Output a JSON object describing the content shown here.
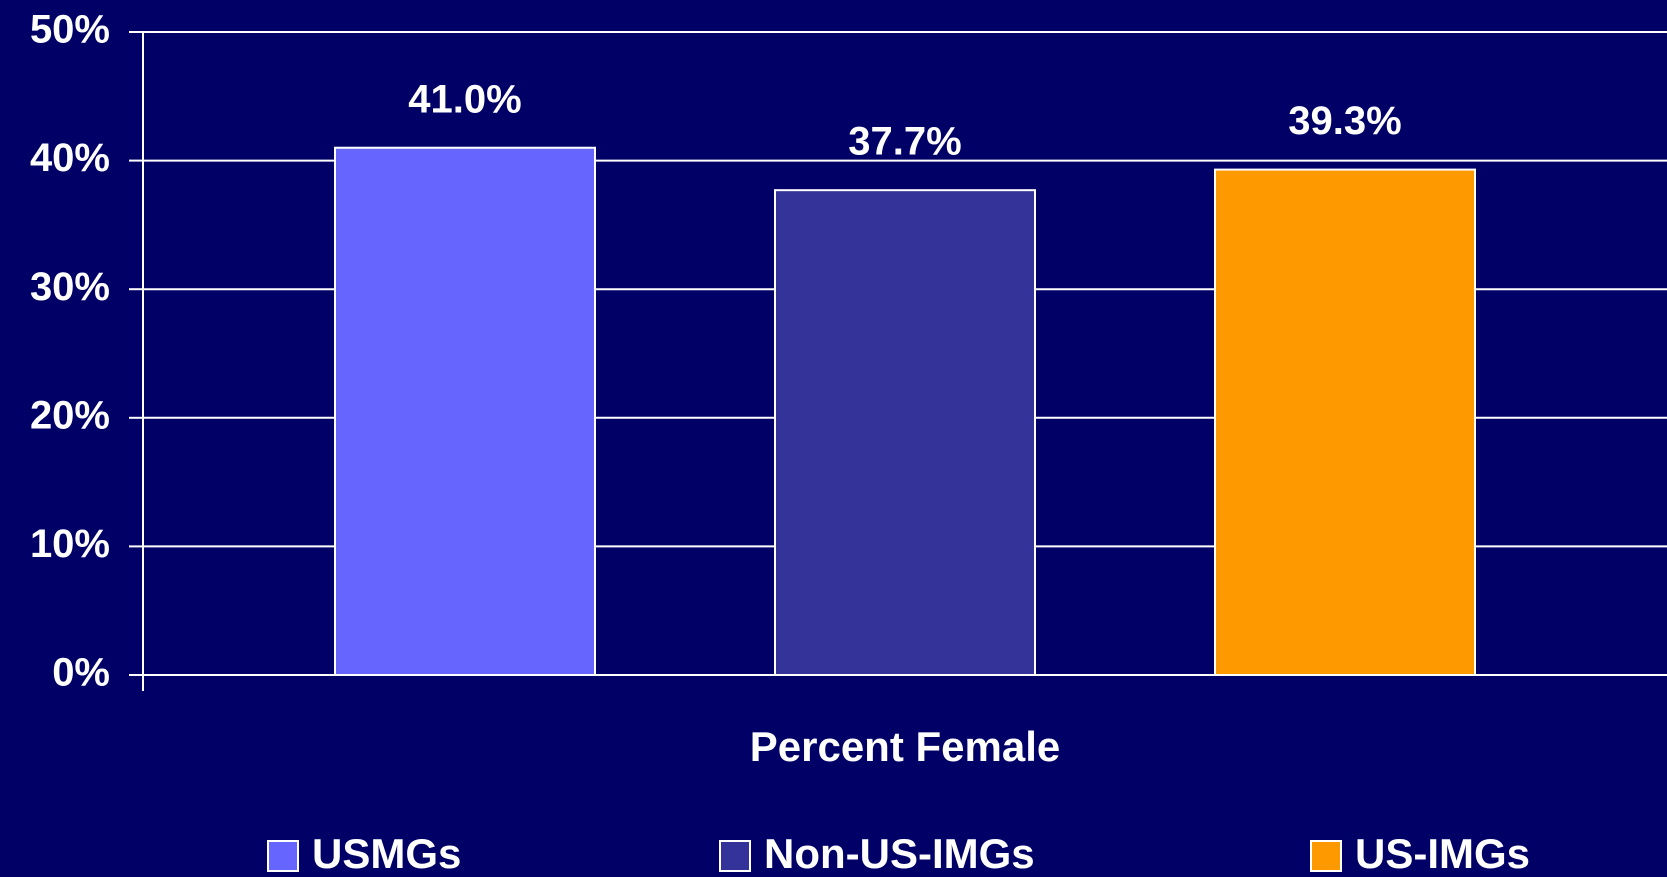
{
  "chart_data": {
    "type": "bar",
    "categories": [
      "Percent Female"
    ],
    "series": [
      {
        "name": "USMGs",
        "color": "#6666ff",
        "values": [
          41.0
        ],
        "value_labels": [
          "41.0%"
        ]
      },
      {
        "name": "Non-US-IMGs",
        "color": "#333399",
        "values": [
          37.7
        ],
        "value_labels": [
          "37.7%"
        ]
      },
      {
        "name": "US-IMGs",
        "color": "#ff9900",
        "values": [
          39.3
        ],
        "value_labels": [
          "39.3%"
        ]
      }
    ],
    "ylim": [
      0,
      50
    ],
    "yticks": [
      {
        "value": 0,
        "label": "0%"
      },
      {
        "value": 10,
        "label": "10%"
      },
      {
        "value": 20,
        "label": "20%"
      },
      {
        "value": 30,
        "label": "30%"
      },
      {
        "value": 40,
        "label": "40%"
      },
      {
        "value": 50,
        "label": "50%"
      }
    ],
    "grid": true,
    "legend": "bottom"
  }
}
